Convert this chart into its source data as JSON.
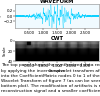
{
  "title_top": "WAVEFORM",
  "title_bottom": "CWT",
  "xlabel": "Samples",
  "ylabel_top": "Ampl.",
  "ylabel_bottom": "Scale",
  "x_ticks": [
    0.5,
    1.0,
    1.5,
    2.0,
    2.5
  ],
  "x_ticks_labels": [
    "0.500",
    "1.000",
    "1.500",
    "2.000",
    "2.500"
  ],
  "bg_color": "#ffffff",
  "signal_color": "#00cfff",
  "caption_line1": "The top panel shows the synthesized data reconstructed",
  "caption_line2": "by applying the inverse wavelet transform after converting it",
  "caption_line3": "into the CoefficientMatrix nodes 0 to 1 of the Discrete",
  "caption_line4": "Wavelet Transform of figure 7 (as can be seen in the",
  "caption_line5": "bottom plot). The modification of artifacts is much smoother across",
  "caption_line6": "reconstruction signal and a smaller coefficient/array achieved.",
  "caption_fontsize": 3.2,
  "title_fontsize": 3.8,
  "tick_fontsize": 2.8,
  "label_fontsize": 2.8,
  "n_samples": 2000,
  "scalogram_rows": 40
}
